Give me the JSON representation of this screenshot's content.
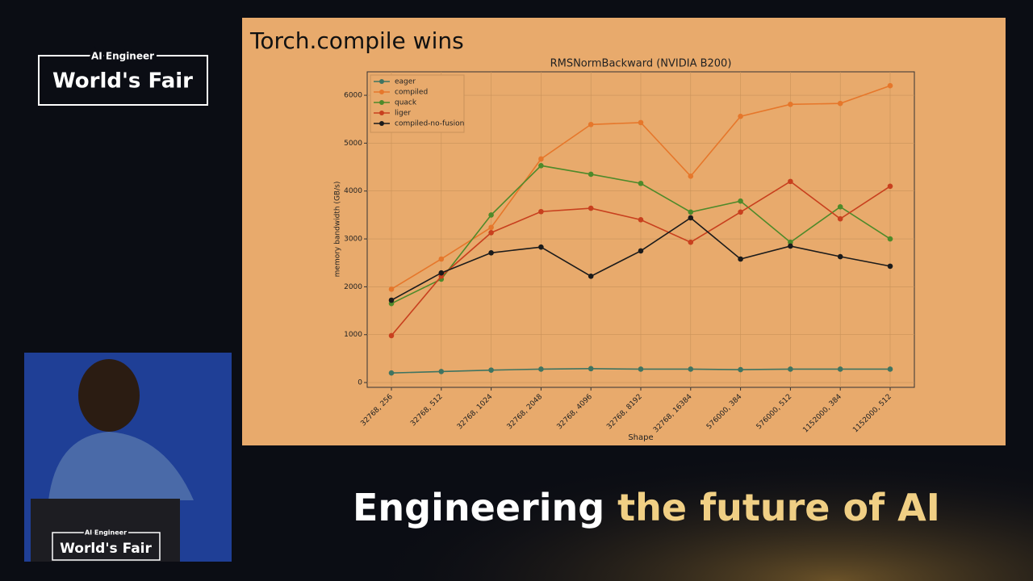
{
  "overlay": {
    "logo_top": "AI Engineer",
    "logo_main": "World's Fair",
    "podium_top": "AI Engineer",
    "podium_main": "World's Fair",
    "caption_white": "Engineering",
    "caption_gold": "the future of AI"
  },
  "slide": {
    "title": "Torch.compile wins"
  },
  "chart_data": {
    "type": "line",
    "title": "RMSNormBackward (NVIDIA B200)",
    "x_label": "Shape",
    "y_label": "memory bandwidth (GB/s)",
    "categories": [
      "32768, 256",
      "32768, 512",
      "32768, 1024",
      "32768, 2048",
      "32768, 4096",
      "32768, 8192",
      "32768, 16384",
      "576000, 384",
      "576000, 512",
      "1152000, 384",
      "1152000, 512"
    ],
    "series": [
      {
        "name": "eager",
        "color": "#3f7461",
        "values": [
          200,
          230,
          260,
          280,
          290,
          280,
          280,
          270,
          280,
          280,
          280
        ]
      },
      {
        "name": "compiled",
        "color": "#e6772b",
        "values": [
          1950,
          2580,
          3240,
          4670,
          5390,
          5430,
          4310,
          5560,
          5810,
          5830,
          6200
        ]
      },
      {
        "name": "quack",
        "color": "#4e8a2a",
        "values": [
          1650,
          2160,
          3500,
          4530,
          4350,
          4160,
          3560,
          3790,
          2930,
          3670,
          3000
        ]
      },
      {
        "name": "liger",
        "color": "#c8401e",
        "values": [
          980,
          2220,
          3130,
          3570,
          3640,
          3400,
          2930,
          3560,
          4200,
          3420,
          4100
        ]
      },
      {
        "name": "compiled-no-fusion",
        "color": "#1b1b1b",
        "values": [
          1720,
          2290,
          2710,
          2830,
          2220,
          2750,
          3440,
          2580,
          2850,
          2630,
          2430
        ]
      }
    ],
    "ylim": [
      -100,
      6490
    ],
    "yticks": [
      0,
      1000,
      2000,
      3000,
      4000,
      5000,
      6000
    ],
    "grid": true,
    "legend": "upper left"
  }
}
